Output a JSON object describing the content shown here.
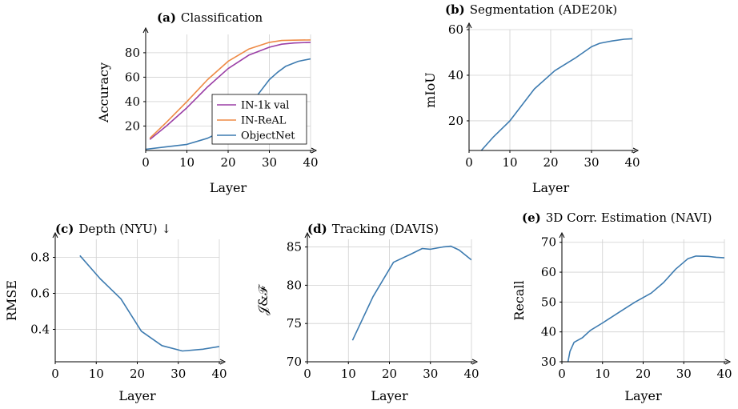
{
  "chart_data": [
    {
      "id": "a",
      "type": "line",
      "panel": "(a)",
      "title": "Classification",
      "xlabel": "Layer",
      "ylabel": "Accuracy",
      "xlim": [
        0,
        40
      ],
      "ylim": [
        0,
        95
      ],
      "xticks": [
        0,
        10,
        20,
        30,
        40
      ],
      "yticks": [
        20,
        40,
        60,
        80
      ],
      "grid": true,
      "legend_position": "center-right",
      "series": [
        {
          "name": "IN-1k val",
          "color": "#9b3fa6",
          "x": [
            1,
            5,
            10,
            15,
            20,
            25,
            30,
            33,
            36,
            40
          ],
          "y": [
            9,
            20,
            35,
            52,
            67,
            78,
            84.5,
            87,
            88,
            88.5
          ]
        },
        {
          "name": "IN-ReAL",
          "color": "#ee8a45",
          "x": [
            1,
            5,
            10,
            15,
            20,
            25,
            30,
            33,
            36,
            40
          ],
          "y": [
            10,
            23,
            40,
            58,
            73,
            83,
            88.5,
            90,
            90.3,
            90.5
          ]
        },
        {
          "name": "ObjectNet",
          "color": "#3d7bb0",
          "x": [
            0,
            5,
            10,
            15,
            20,
            25,
            30,
            32,
            34,
            37,
            40
          ],
          "y": [
            1,
            3,
            5,
            10,
            18,
            36,
            58,
            64,
            69,
            73,
            75
          ]
        }
      ]
    },
    {
      "id": "b",
      "type": "line",
      "panel": "(b)",
      "title": "Segmentation (ADE20k)",
      "xlabel": "Layer",
      "ylabel": "mIoU",
      "xlim": [
        0,
        40
      ],
      "ylim": [
        7,
        60
      ],
      "xticks": [
        0,
        10,
        20,
        30,
        40
      ],
      "yticks": [
        20,
        40,
        60
      ],
      "grid": true,
      "series": [
        {
          "color": "#3d7bb0",
          "x": [
            3,
            6,
            10,
            16,
            21,
            26,
            30,
            32,
            35,
            38,
            40
          ],
          "y": [
            7,
            13,
            20,
            34,
            42,
            47.5,
            52.5,
            54,
            55,
            55.8,
            56
          ]
        }
      ]
    },
    {
      "id": "c",
      "type": "line",
      "panel": "(c)",
      "title": "Depth (NYU) ↓",
      "xlabel": "Layer",
      "ylabel": "RMSE",
      "xlim": [
        0,
        40
      ],
      "ylim": [
        0.22,
        0.9
      ],
      "xticks": [
        0,
        10,
        20,
        30,
        40
      ],
      "yticks": [
        0.4,
        0.6,
        0.8
      ],
      "grid": true,
      "series": [
        {
          "color": "#3d7bb0",
          "x": [
            6,
            11,
            16,
            21,
            26,
            31,
            36,
            40
          ],
          "y": [
            0.81,
            0.68,
            0.57,
            0.39,
            0.31,
            0.28,
            0.29,
            0.305
          ]
        }
      ]
    },
    {
      "id": "d",
      "type": "line",
      "panel": "(d)",
      "title": "Tracking (DAVIS)",
      "xlabel": "Layer",
      "ylabel": "𝒥&ℱ",
      "xlim": [
        0,
        40
      ],
      "ylim": [
        70,
        86
      ],
      "xticks": [
        0,
        10,
        20,
        30,
        40
      ],
      "yticks": [
        70,
        75,
        80,
        85
      ],
      "grid": true,
      "series": [
        {
          "color": "#3d7bb0",
          "x": [
            11,
            16,
            21,
            25,
            28,
            30,
            33,
            35,
            37,
            40
          ],
          "y": [
            72.8,
            78.5,
            83,
            84,
            84.8,
            84.7,
            85,
            85.1,
            84.6,
            83.3
          ]
        }
      ]
    },
    {
      "id": "e",
      "type": "line",
      "panel": "(e)",
      "title": "3D Corr. Estimation (NAVI)",
      "xlabel": "Layer",
      "ylabel": "Recall",
      "xlim": [
        0,
        40
      ],
      "ylim": [
        30,
        71
      ],
      "xticks": [
        0,
        10,
        20,
        30,
        40
      ],
      "yticks": [
        30,
        40,
        50,
        60,
        70
      ],
      "grid": true,
      "series": [
        {
          "color": "#3d7bb0",
          "x": [
            1.5,
            2,
            3,
            5,
            7,
            10,
            14,
            18,
            22,
            25,
            28,
            31,
            33,
            36,
            38,
            40
          ],
          "y": [
            30,
            33.5,
            36.5,
            38,
            40.5,
            43,
            46.5,
            50,
            53,
            56.5,
            61,
            64.5,
            65.4,
            65.3,
            65,
            64.8
          ]
        }
      ]
    }
  ]
}
